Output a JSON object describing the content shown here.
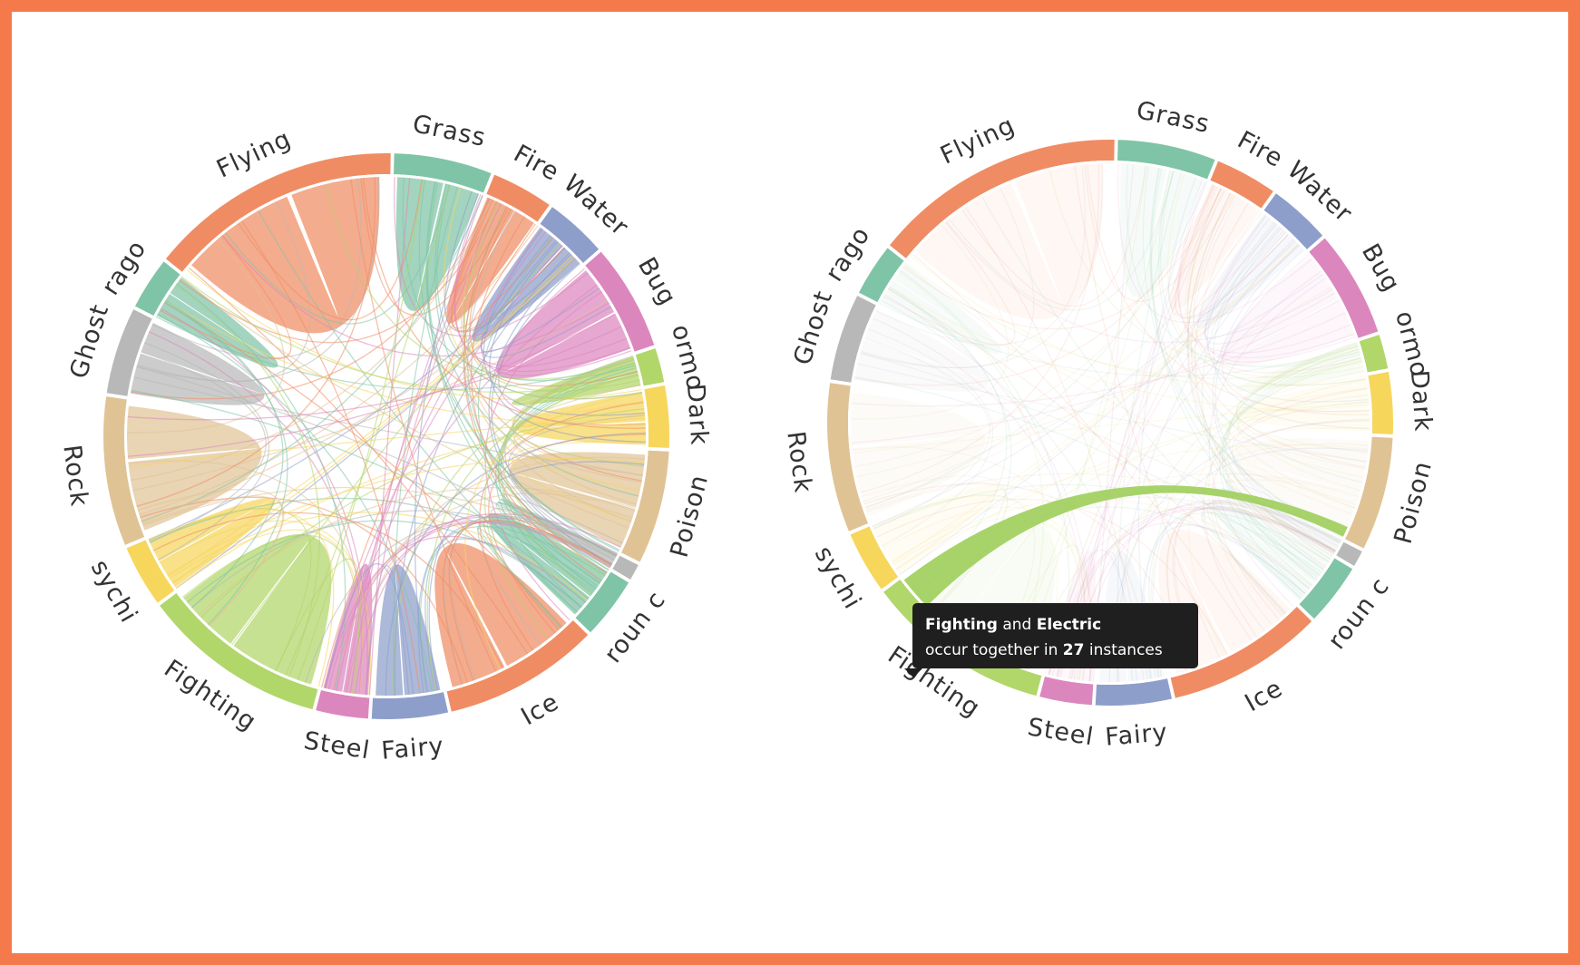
{
  "frame_color": "#f47a4c",
  "chart_data": [
    {
      "type": "chord",
      "state": "all",
      "groups": [
        {
          "label": "Grass",
          "color": "#7fc4a6",
          "size": 7.2
        },
        {
          "label": "Fire",
          "color": "#f08c63",
          "size": 4.6
        },
        {
          "label": "Water",
          "color": "#8e9ecb",
          "size": 4.6
        },
        {
          "label": "Bug",
          "color": "#dc86be",
          "size": 7.8
        },
        {
          "label": "ormo",
          "color": "#b1d66a",
          "size": 2.6
        },
        {
          "label": "Dark",
          "color": "#f7d65c",
          "size": 4.6
        },
        {
          "label": "Poison",
          "color": "#e0c395",
          "size": 8.3
        },
        {
          "label": "",
          "color": "#b8b8b8",
          "size": 1.3
        },
        {
          "label": "roun c",
          "color": "#7fc4a6",
          "size": 4.6
        },
        {
          "label": "Ice",
          "color": "#f08c63",
          "size": 11.4
        },
        {
          "label": "Fairy",
          "color": "#8e9ecb",
          "size": 5.6
        },
        {
          "label": "Steel",
          "color": "#dc86be",
          "size": 3.9
        },
        {
          "label": "Fighting",
          "color": "#b1d66a",
          "size": 13.5
        },
        {
          "label": "sychi",
          "color": "#f7d65c",
          "size": 4.6
        },
        {
          "label": "Rock",
          "color": "#e0c395",
          "size": 10.9
        },
        {
          "label": "Ghost",
          "color": "#b8b8b8",
          "size": 6.4
        },
        {
          "label": "rago",
          "color": "#7fc4a6",
          "size": 3.9
        },
        {
          "label": "Flying",
          "color": "#f08c63",
          "size": 18.4
        }
      ]
    },
    {
      "type": "chord",
      "state": "hover",
      "highlight": [
        "Fighting",
        "Electric"
      ],
      "tooltip": {
        "a": "Fighting",
        "and": "and",
        "b": "Electric",
        "prefix": "occur together in",
        "count": "27",
        "suffix": "instances"
      }
    }
  ]
}
